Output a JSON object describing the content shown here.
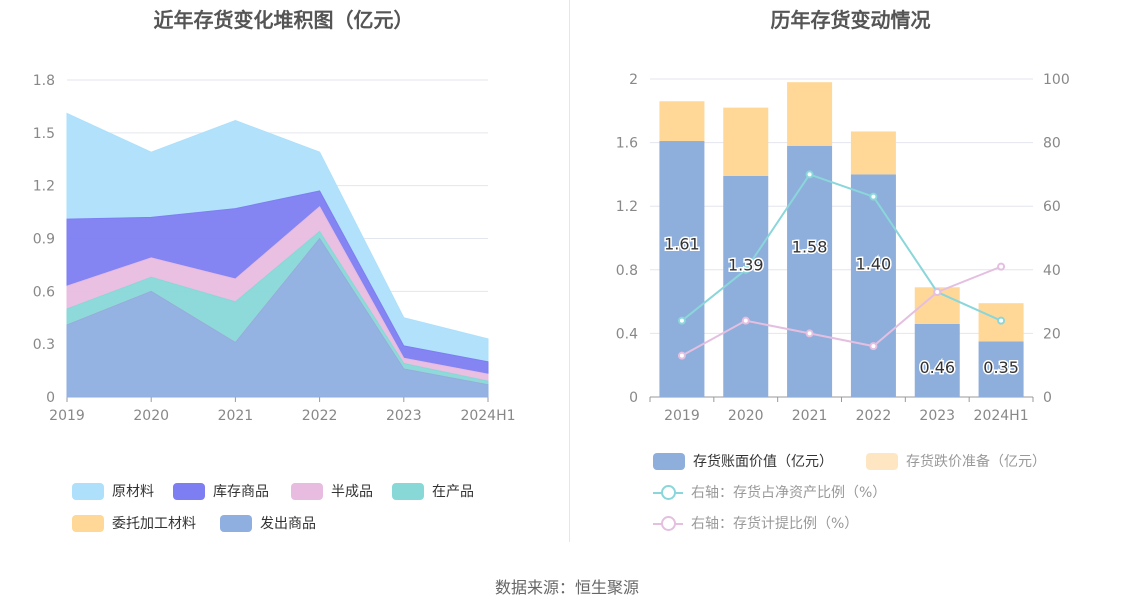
{
  "footer": {
    "source": "数据来源：恒生聚源"
  },
  "chart_data": [
    {
      "type": "area",
      "stacked": true,
      "title": "近年存货变化堆积图（亿元）",
      "categories": [
        "2019",
        "2020",
        "2021",
        "2022",
        "2023",
        "2024H1"
      ],
      "ylim": [
        0,
        1.8
      ],
      "yticks": [
        "0",
        "0.3",
        "0.6",
        "0.9",
        "1.2",
        "1.5",
        "1.8"
      ],
      "legend_position": "bottom",
      "series": [
        {
          "name": "发出商品",
          "color": "#8fafe0",
          "values": [
            0.41,
            0.6,
            0.31,
            0.9,
            0.16,
            0.07
          ]
        },
        {
          "name": "委托加工材料",
          "color": "#ffd898",
          "values": [
            0.0,
            0.0,
            0.0,
            0.0,
            0.0,
            0.0
          ]
        },
        {
          "name": "在产品",
          "color": "#88d8d8",
          "values": [
            0.09,
            0.08,
            0.23,
            0.04,
            0.03,
            0.02
          ]
        },
        {
          "name": "半成品",
          "color": "#e8bce0",
          "values": [
            0.13,
            0.11,
            0.13,
            0.14,
            0.03,
            0.04
          ]
        },
        {
          "name": "库存商品",
          "color": "#7d7ef2",
          "values": [
            0.38,
            0.23,
            0.4,
            0.09,
            0.07,
            0.07
          ]
        },
        {
          "name": "原材料",
          "color": "#aee0fb",
          "values": [
            0.6,
            0.37,
            0.5,
            0.22,
            0.16,
            0.13
          ]
        }
      ],
      "legend_order": [
        "原材料",
        "库存商品",
        "半成品",
        "在产品",
        "委托加工材料",
        "发出商品"
      ]
    },
    {
      "type": "bar",
      "stacked": true,
      "title": "历年存货变动情况",
      "categories": [
        "2019",
        "2020",
        "2021",
        "2022",
        "2023",
        "2024H1"
      ],
      "ylim": [
        0,
        2
      ],
      "yticks": [
        "0",
        "0.4",
        "0.8",
        "1.2",
        "1.6",
        "2"
      ],
      "y2lim": [
        0,
        100
      ],
      "y2ticks": [
        "0",
        "20",
        "40",
        "60",
        "80",
        "100"
      ],
      "legend_position": "bottom",
      "series": [
        {
          "name": "存货账面价值（亿元）",
          "color": "#8eaedb",
          "values": [
            1.61,
            1.39,
            1.58,
            1.4,
            0.46,
            0.35
          ],
          "labels": [
            "1.61",
            "1.39",
            "1.58",
            "1.40",
            "0.46",
            "0.35"
          ]
        },
        {
          "name": "存货跌价准备（亿元）",
          "color": "#ffd898",
          "values": [
            0.25,
            0.43,
            0.4,
            0.27,
            0.23,
            0.24
          ]
        }
      ],
      "lines": [
        {
          "name": "右轴：存货占净资产比例（%）",
          "color": "#8ad6da",
          "axis": "right",
          "values": [
            24,
            40,
            70,
            63,
            33,
            24
          ]
        },
        {
          "name": "右轴：存货计提比例（%）",
          "color": "#e4bfe0",
          "axis": "right",
          "values": [
            13,
            24,
            20,
            16,
            33,
            41
          ]
        }
      ]
    }
  ]
}
